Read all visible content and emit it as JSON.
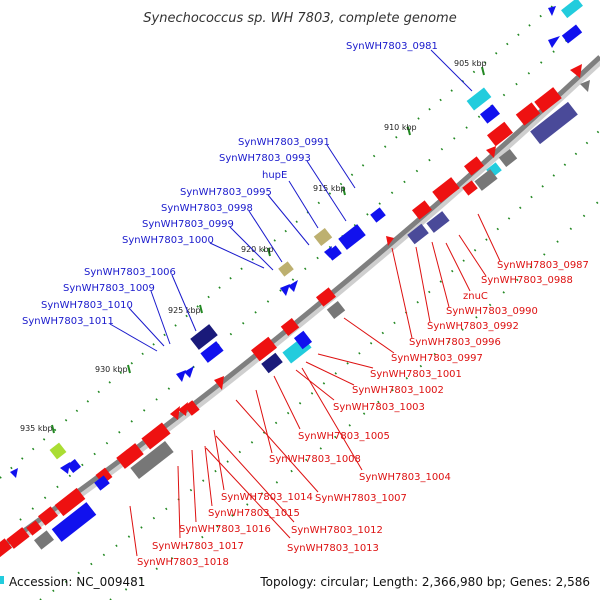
{
  "title": "Synechococcus sp. WH 7803, complete genome",
  "footer": {
    "accession": "Accession: NC_009481",
    "summary": "Topology: circular; Length: 2,366,980 bp; Genes: 2,586"
  },
  "colors": {
    "backbone": "#7f7f7f",
    "forward_label": "#1a1acc",
    "reverse_label": "#dd1111",
    "cds_red": "#ee1111",
    "cds_blue": "#1111ee",
    "cds_navy": "#1a1a7a",
    "cds_slate": "#4a4a99",
    "rna_cyan": "#22ccdd",
    "pseudo_gray": "#777777",
    "khaki": "#bdb070",
    "lime": "#aadd33",
    "gc_tick": "#228822"
  },
  "ruler": [
    "905 kbp",
    "910 kbp",
    "915 kbp",
    "920 kbp",
    "925 kbp",
    "930 kbp",
    "935 kbp"
  ],
  "forward_labels": [
    "SynWH7803_0981",
    "SynWH7803_0991",
    "SynWH7803_0993",
    "hupE",
    "SynWH7803_0995",
    "SynWH7803_0998",
    "SynWH7803_0999",
    "SynWH7803_1000",
    "SynWH7803_1006",
    "SynWH7803_1009",
    "SynWH7803_1010",
    "SynWH7803_1011"
  ],
  "reverse_labels": [
    "SynWH7803_0987",
    "SynWH7803_0988",
    "znuC",
    "SynWH7803_0990",
    "SynWH7803_0992",
    "SynWH7803_0996",
    "SynWH7803_0997",
    "SynWH7803_1001",
    "SynWH7803_1002",
    "SynWH7803_1003",
    "SynWH7803_1005",
    "SynWH7803_1004",
    "SynWH7803_1008",
    "SynWH7803_1007",
    "SynWH7803_1014",
    "SynWH7803_1015",
    "SynWH7803_1012",
    "SynWH7803_1016",
    "SynWH7803_1013",
    "SynWH7803_1017",
    "SynWH7803_1018"
  ]
}
